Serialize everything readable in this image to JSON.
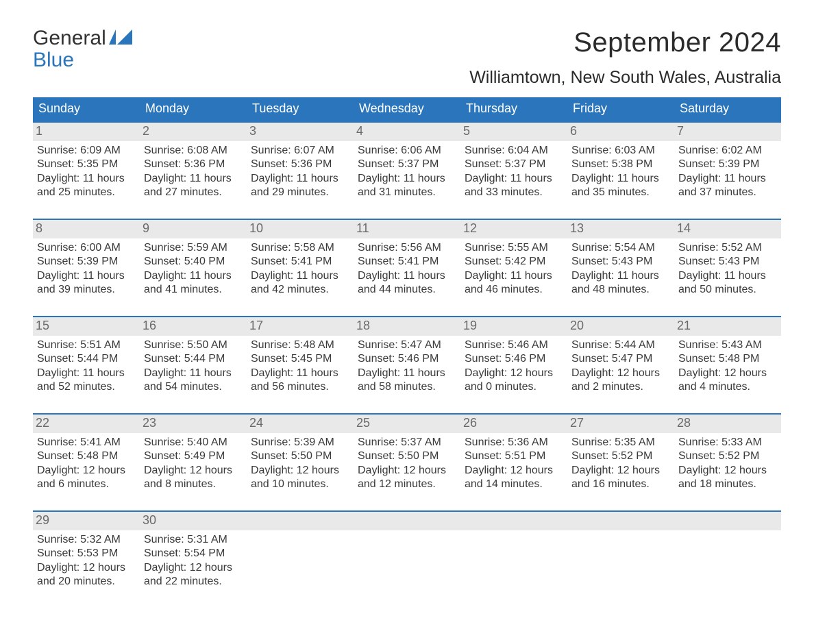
{
  "branding": {
    "logo_word1": "General",
    "logo_word2": "Blue",
    "logo_shape_color": "#2a75bb"
  },
  "header": {
    "title": "September 2024",
    "location": "Williamtown, New South Wales, Australia"
  },
  "colors": {
    "header_bg": "#2a75bb",
    "header_text": "#ffffff",
    "daynum_bg": "#e9e9e9",
    "daynum_text": "#6a6a6a",
    "week_divider": "#2a75bb",
    "body_text": "#3a3a3a",
    "page_bg": "#ffffff"
  },
  "typography": {
    "title_fontsize": 40,
    "subtitle_fontsize": 25,
    "dayheader_fontsize": 18,
    "daynum_fontsize": 18,
    "info_fontsize": 16
  },
  "calendar": {
    "type": "table",
    "columns": [
      "Sunday",
      "Monday",
      "Tuesday",
      "Wednesday",
      "Thursday",
      "Friday",
      "Saturday"
    ],
    "weeks": [
      [
        {
          "n": "1",
          "sr": "Sunrise: 6:09 AM",
          "ss": "Sunset: 5:35 PM",
          "d1": "Daylight: 11 hours",
          "d2": "and 25 minutes."
        },
        {
          "n": "2",
          "sr": "Sunrise: 6:08 AM",
          "ss": "Sunset: 5:36 PM",
          "d1": "Daylight: 11 hours",
          "d2": "and 27 minutes."
        },
        {
          "n": "3",
          "sr": "Sunrise: 6:07 AM",
          "ss": "Sunset: 5:36 PM",
          "d1": "Daylight: 11 hours",
          "d2": "and 29 minutes."
        },
        {
          "n": "4",
          "sr": "Sunrise: 6:06 AM",
          "ss": "Sunset: 5:37 PM",
          "d1": "Daylight: 11 hours",
          "d2": "and 31 minutes."
        },
        {
          "n": "5",
          "sr": "Sunrise: 6:04 AM",
          "ss": "Sunset: 5:37 PM",
          "d1": "Daylight: 11 hours",
          "d2": "and 33 minutes."
        },
        {
          "n": "6",
          "sr": "Sunrise: 6:03 AM",
          "ss": "Sunset: 5:38 PM",
          "d1": "Daylight: 11 hours",
          "d2": "and 35 minutes."
        },
        {
          "n": "7",
          "sr": "Sunrise: 6:02 AM",
          "ss": "Sunset: 5:39 PM",
          "d1": "Daylight: 11 hours",
          "d2": "and 37 minutes."
        }
      ],
      [
        {
          "n": "8",
          "sr": "Sunrise: 6:00 AM",
          "ss": "Sunset: 5:39 PM",
          "d1": "Daylight: 11 hours",
          "d2": "and 39 minutes."
        },
        {
          "n": "9",
          "sr": "Sunrise: 5:59 AM",
          "ss": "Sunset: 5:40 PM",
          "d1": "Daylight: 11 hours",
          "d2": "and 41 minutes."
        },
        {
          "n": "10",
          "sr": "Sunrise: 5:58 AM",
          "ss": "Sunset: 5:41 PM",
          "d1": "Daylight: 11 hours",
          "d2": "and 42 minutes."
        },
        {
          "n": "11",
          "sr": "Sunrise: 5:56 AM",
          "ss": "Sunset: 5:41 PM",
          "d1": "Daylight: 11 hours",
          "d2": "and 44 minutes."
        },
        {
          "n": "12",
          "sr": "Sunrise: 5:55 AM",
          "ss": "Sunset: 5:42 PM",
          "d1": "Daylight: 11 hours",
          "d2": "and 46 minutes."
        },
        {
          "n": "13",
          "sr": "Sunrise: 5:54 AM",
          "ss": "Sunset: 5:43 PM",
          "d1": "Daylight: 11 hours",
          "d2": "and 48 minutes."
        },
        {
          "n": "14",
          "sr": "Sunrise: 5:52 AM",
          "ss": "Sunset: 5:43 PM",
          "d1": "Daylight: 11 hours",
          "d2": "and 50 minutes."
        }
      ],
      [
        {
          "n": "15",
          "sr": "Sunrise: 5:51 AM",
          "ss": "Sunset: 5:44 PM",
          "d1": "Daylight: 11 hours",
          "d2": "and 52 minutes."
        },
        {
          "n": "16",
          "sr": "Sunrise: 5:50 AM",
          "ss": "Sunset: 5:44 PM",
          "d1": "Daylight: 11 hours",
          "d2": "and 54 minutes."
        },
        {
          "n": "17",
          "sr": "Sunrise: 5:48 AM",
          "ss": "Sunset: 5:45 PM",
          "d1": "Daylight: 11 hours",
          "d2": "and 56 minutes."
        },
        {
          "n": "18",
          "sr": "Sunrise: 5:47 AM",
          "ss": "Sunset: 5:46 PM",
          "d1": "Daylight: 11 hours",
          "d2": "and 58 minutes."
        },
        {
          "n": "19",
          "sr": "Sunrise: 5:46 AM",
          "ss": "Sunset: 5:46 PM",
          "d1": "Daylight: 12 hours",
          "d2": "and 0 minutes."
        },
        {
          "n": "20",
          "sr": "Sunrise: 5:44 AM",
          "ss": "Sunset: 5:47 PM",
          "d1": "Daylight: 12 hours",
          "d2": "and 2 minutes."
        },
        {
          "n": "21",
          "sr": "Sunrise: 5:43 AM",
          "ss": "Sunset: 5:48 PM",
          "d1": "Daylight: 12 hours",
          "d2": "and 4 minutes."
        }
      ],
      [
        {
          "n": "22",
          "sr": "Sunrise: 5:41 AM",
          "ss": "Sunset: 5:48 PM",
          "d1": "Daylight: 12 hours",
          "d2": "and 6 minutes."
        },
        {
          "n": "23",
          "sr": "Sunrise: 5:40 AM",
          "ss": "Sunset: 5:49 PM",
          "d1": "Daylight: 12 hours",
          "d2": "and 8 minutes."
        },
        {
          "n": "24",
          "sr": "Sunrise: 5:39 AM",
          "ss": "Sunset: 5:50 PM",
          "d1": "Daylight: 12 hours",
          "d2": "and 10 minutes."
        },
        {
          "n": "25",
          "sr": "Sunrise: 5:37 AM",
          "ss": "Sunset: 5:50 PM",
          "d1": "Daylight: 12 hours",
          "d2": "and 12 minutes."
        },
        {
          "n": "26",
          "sr": "Sunrise: 5:36 AM",
          "ss": "Sunset: 5:51 PM",
          "d1": "Daylight: 12 hours",
          "d2": "and 14 minutes."
        },
        {
          "n": "27",
          "sr": "Sunrise: 5:35 AM",
          "ss": "Sunset: 5:52 PM",
          "d1": "Daylight: 12 hours",
          "d2": "and 16 minutes."
        },
        {
          "n": "28",
          "sr": "Sunrise: 5:33 AM",
          "ss": "Sunset: 5:52 PM",
          "d1": "Daylight: 12 hours",
          "d2": "and 18 minutes."
        }
      ],
      [
        {
          "n": "29",
          "sr": "Sunrise: 5:32 AM",
          "ss": "Sunset: 5:53 PM",
          "d1": "Daylight: 12 hours",
          "d2": "and 20 minutes."
        },
        {
          "n": "30",
          "sr": "Sunrise: 5:31 AM",
          "ss": "Sunset: 5:54 PM",
          "d1": "Daylight: 12 hours",
          "d2": "and 22 minutes."
        },
        {
          "empty": true
        },
        {
          "empty": true
        },
        {
          "empty": true
        },
        {
          "empty": true
        },
        {
          "empty": true
        }
      ]
    ]
  }
}
